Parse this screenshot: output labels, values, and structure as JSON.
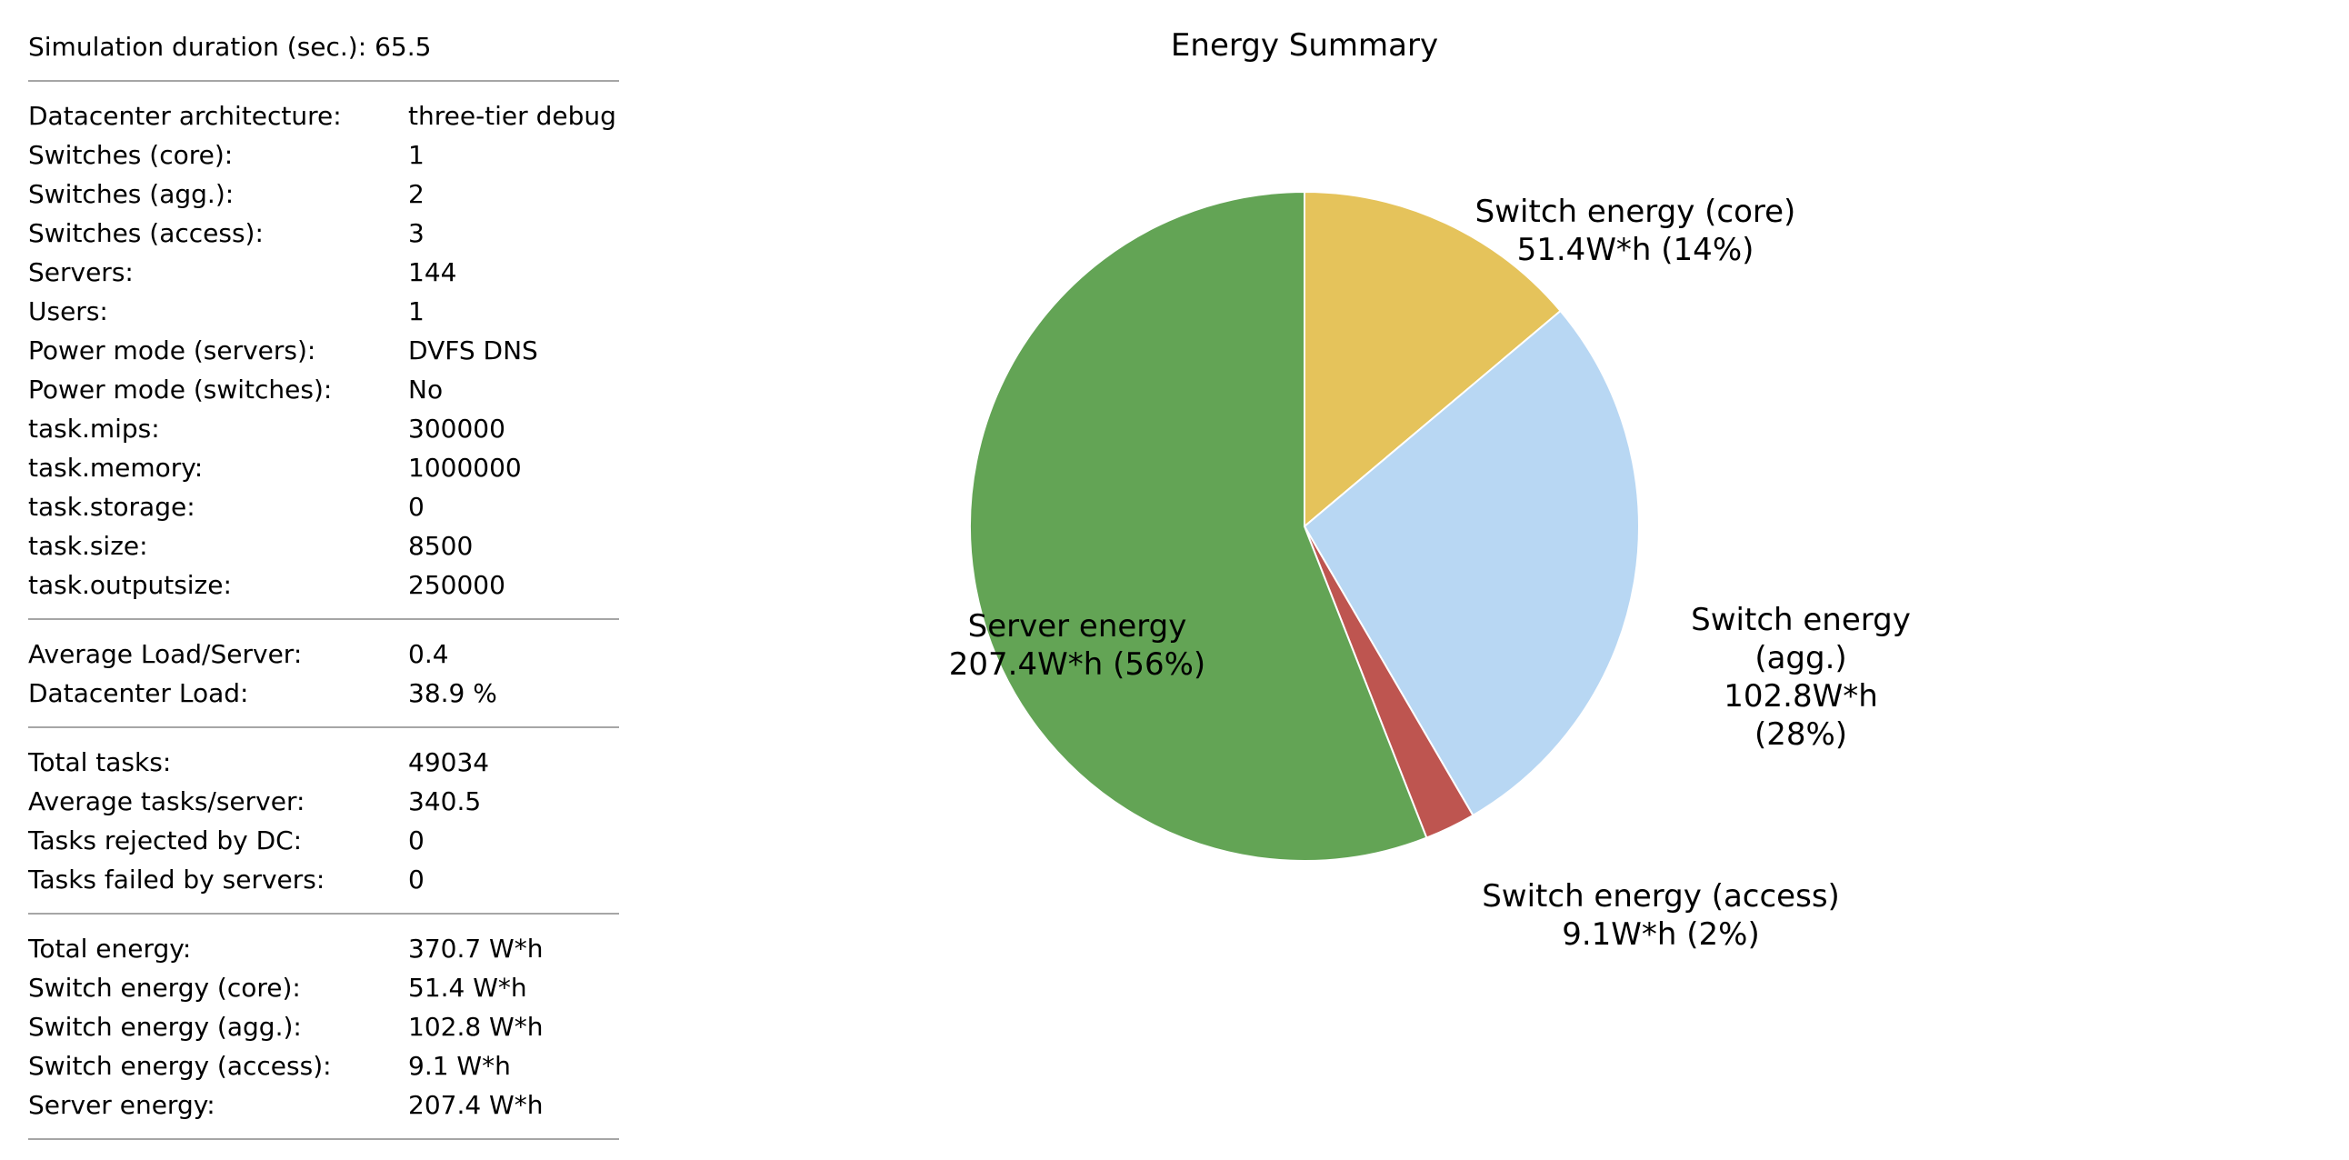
{
  "stats": {
    "header": {
      "label": "Simulation duration (sec.):",
      "value": "65.5"
    },
    "groups": [
      {
        "rows": [
          {
            "label": "Datacenter architecture:",
            "value": "three-tier debug"
          },
          {
            "label": "Switches (core):",
            "value": "1"
          },
          {
            "label": "Switches (agg.):",
            "value": "2"
          },
          {
            "label": "Switches (access):",
            "value": "3"
          },
          {
            "label": "Servers:",
            "value": "144"
          },
          {
            "label": "Users:",
            "value": "1"
          },
          {
            "label": "Power mode (servers):",
            "value": "DVFS DNS"
          },
          {
            "label": "Power mode (switches):",
            "value": "No"
          },
          {
            "label": "task.mips:",
            "value": "300000"
          },
          {
            "label": "task.memory:",
            "value": "1000000"
          },
          {
            "label": "task.storage:",
            "value": "0"
          },
          {
            "label": "task.size:",
            "value": "8500"
          },
          {
            "label": "task.outputsize:",
            "value": "250000"
          }
        ]
      },
      {
        "rows": [
          {
            "label": "Average Load/Server:",
            "value": "0.4"
          },
          {
            "label": "Datacenter Load:",
            "value": "38.9 %"
          }
        ]
      },
      {
        "rows": [
          {
            "label": "Total tasks:",
            "value": "49034"
          },
          {
            "label": "Average tasks/server:",
            "value": "340.5"
          },
          {
            "label": "Tasks rejected by DC:",
            "value": "0"
          },
          {
            "label": "Tasks failed by servers:",
            "value": "0"
          }
        ]
      },
      {
        "rows": [
          {
            "label": "Total energy:",
            "value": "370.7 W*h"
          },
          {
            "label": "Switch energy (core):",
            "value": "51.4 W*h"
          },
          {
            "label": "Switch energy (agg.):",
            "value": "102.8 W*h"
          },
          {
            "label": "Switch energy (access):",
            "value": "9.1 W*h"
          },
          {
            "label": "Server energy:",
            "value": "207.4 W*h"
          }
        ]
      }
    ]
  },
  "chart_data": {
    "type": "pie",
    "title": "Energy Summary",
    "start_angle_deg": 0,
    "direction": "clockwise",
    "slice_border_color": "#ffffff",
    "slices": [
      {
        "name": "Switch energy (core)",
        "value": 51.4,
        "percent_label": "14%",
        "value_label": "51.4W*h",
        "color": "#E5C35B",
        "label_lines": [
          "Switch energy (core)",
          "51.4W*h (14%)"
        ]
      },
      {
        "name": "Switch energy (agg.)",
        "value": 102.8,
        "percent_label": "28%",
        "value_label": "102.8W*h",
        "color": "#B8D7F3",
        "label_lines": [
          "Switch energy",
          "(agg.)",
          "102.8W*h",
          "(28%)"
        ]
      },
      {
        "name": "Switch energy (access)",
        "value": 9.1,
        "percent_label": "2%",
        "value_label": "9.1W*h",
        "color": "#BE5550",
        "label_lines": [
          "Switch energy (access)",
          "9.1W*h (2%)"
        ]
      },
      {
        "name": "Server energy",
        "value": 207.4,
        "percent_label": "56%",
        "value_label": "207.4W*h",
        "color": "#63A455",
        "label_lines": [
          "Server energy",
          "207.4W*h (56%)"
        ]
      }
    ]
  }
}
